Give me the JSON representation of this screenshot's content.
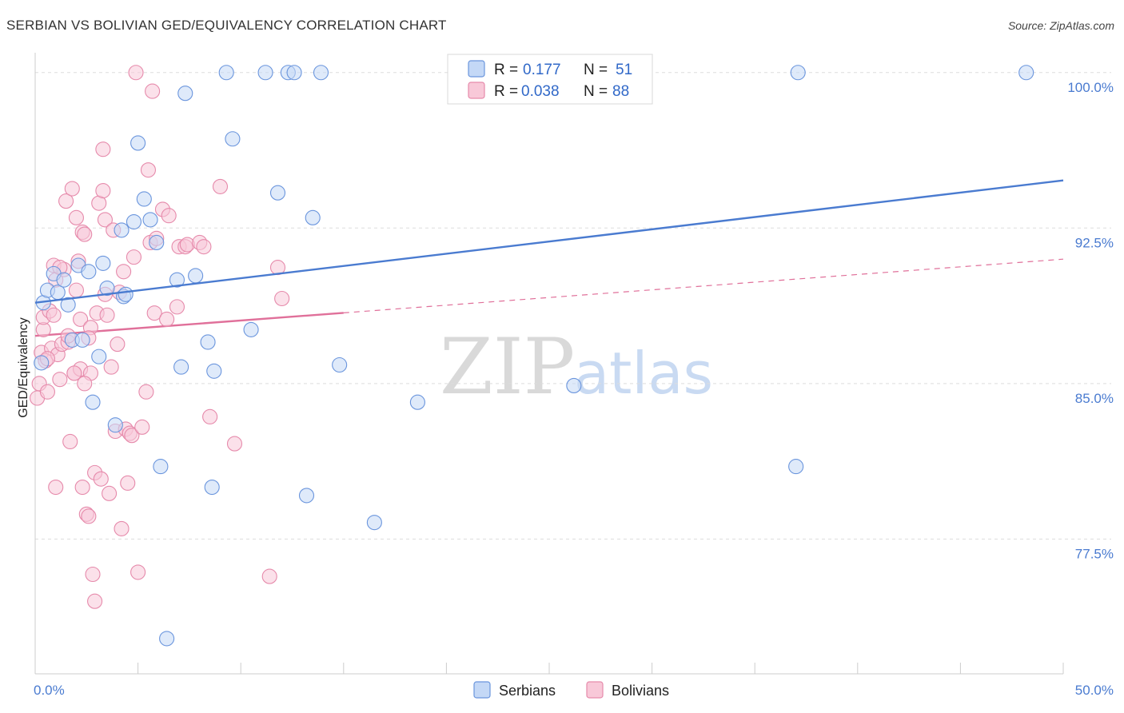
{
  "title": "SERBIAN VS BOLIVIAN GED/EQUIVALENCY CORRELATION CHART",
  "source": "Source: ZipAtlas.com",
  "watermark": {
    "zip": "ZIP",
    "atlas": "atlas"
  },
  "colors": {
    "serbians": "#4a7bd0",
    "bolivians": "#e0709a"
  },
  "legend": {
    "r_label": "R =",
    "n_label": "N =",
    "serbians": {
      "r": "0.177",
      "n": "51"
    },
    "bolivians": {
      "r": "0.038",
      "n": "88"
    }
  },
  "chart_data": {
    "type": "scatter",
    "title": "SERBIAN VS BOLIVIAN GED/EQUIVALENCY CORRELATION CHART",
    "xlabel": "",
    "ylabel": "GED/Equivalency",
    "xlim": [
      0,
      50
    ],
    "ylim": [
      71.0,
      100.8
    ],
    "x_tick_labels": [
      {
        "value": 0,
        "label": "0.0%"
      },
      {
        "value": 50,
        "label": "50.0%"
      }
    ],
    "y_ticks": [
      {
        "value": 77.5,
        "label": "77.5%"
      },
      {
        "value": 85.0,
        "label": "85.0%"
      },
      {
        "value": 92.5,
        "label": "92.5%"
      },
      {
        "value": 100.0,
        "label": "100.0%"
      }
    ],
    "legend_position": "bottom",
    "series": [
      {
        "name": "Serbians",
        "color": "#4a7bd0",
        "trend": {
          "x0": 0,
          "y0": 88.9,
          "x1": 50,
          "y1": 94.8,
          "dashed_from": null
        },
        "points": [
          [
            0.3,
            86.0
          ],
          [
            0.4,
            88.9
          ],
          [
            0.6,
            89.5
          ],
          [
            0.9,
            90.3
          ],
          [
            1.1,
            89.4
          ],
          [
            1.4,
            90.0
          ],
          [
            1.6,
            88.8
          ],
          [
            1.8,
            87.1
          ],
          [
            2.1,
            90.7
          ],
          [
            2.3,
            87.1
          ],
          [
            2.6,
            90.4
          ],
          [
            2.8,
            84.1
          ],
          [
            3.1,
            86.3
          ],
          [
            3.3,
            90.8
          ],
          [
            3.5,
            89.6
          ],
          [
            3.9,
            83.0
          ],
          [
            4.2,
            92.4
          ],
          [
            4.3,
            89.2
          ],
          [
            4.4,
            89.3
          ],
          [
            4.8,
            92.8
          ],
          [
            5.0,
            96.6
          ],
          [
            5.3,
            93.9
          ],
          [
            5.6,
            92.9
          ],
          [
            5.9,
            91.8
          ],
          [
            6.1,
            81.0
          ],
          [
            6.4,
            72.7
          ],
          [
            6.9,
            90.0
          ],
          [
            7.1,
            85.8
          ],
          [
            7.3,
            99.0
          ],
          [
            7.8,
            90.2
          ],
          [
            8.4,
            87.0
          ],
          [
            8.6,
            80.0
          ],
          [
            8.7,
            85.6
          ],
          [
            9.3,
            100.0
          ],
          [
            9.6,
            96.8
          ],
          [
            10.5,
            87.6
          ],
          [
            11.2,
            100.0
          ],
          [
            11.8,
            94.2
          ],
          [
            12.3,
            100.0
          ],
          [
            12.6,
            100.0
          ],
          [
            13.2,
            79.6
          ],
          [
            13.5,
            93.0
          ],
          [
            13.9,
            100.0
          ],
          [
            14.8,
            85.9
          ],
          [
            16.5,
            78.3
          ],
          [
            18.6,
            84.1
          ],
          [
            20.6,
            100.0
          ],
          [
            26.2,
            84.9
          ],
          [
            37.0,
            81.0
          ],
          [
            37.1,
            100.0
          ],
          [
            48.2,
            100.0
          ]
        ]
      },
      {
        "name": "Bolivians",
        "color": "#e0709a",
        "trend": {
          "x0": 0,
          "y0": 87.3,
          "x1": 50,
          "y1": 91.0,
          "dashed_from": 15.0
        },
        "points": [
          [
            0.1,
            84.3
          ],
          [
            0.2,
            85.0
          ],
          [
            0.3,
            86.5
          ],
          [
            0.4,
            87.6
          ],
          [
            0.4,
            88.2
          ],
          [
            0.5,
            86.1
          ],
          [
            0.6,
            84.6
          ],
          [
            0.7,
            88.5
          ],
          [
            0.8,
            86.7
          ],
          [
            0.9,
            90.7
          ],
          [
            1.0,
            90.0
          ],
          [
            1.1,
            86.4
          ],
          [
            1.2,
            85.2
          ],
          [
            1.3,
            86.9
          ],
          [
            1.4,
            90.5
          ],
          [
            1.5,
            93.8
          ],
          [
            1.6,
            87.0
          ],
          [
            1.7,
            82.2
          ],
          [
            1.8,
            94.4
          ],
          [
            1.9,
            85.5
          ],
          [
            2.0,
            93.0
          ],
          [
            2.1,
            90.9
          ],
          [
            2.2,
            85.7
          ],
          [
            2.2,
            88.1
          ],
          [
            2.3,
            92.3
          ],
          [
            2.3,
            80.0
          ],
          [
            2.4,
            92.2
          ],
          [
            2.5,
            78.7
          ],
          [
            2.6,
            78.6
          ],
          [
            2.7,
            85.5
          ],
          [
            2.7,
            87.7
          ],
          [
            2.8,
            75.8
          ],
          [
            2.9,
            80.7
          ],
          [
            2.9,
            74.5
          ],
          [
            3.0,
            88.4
          ],
          [
            3.1,
            93.7
          ],
          [
            3.2,
            80.4
          ],
          [
            3.3,
            94.3
          ],
          [
            3.3,
            96.3
          ],
          [
            3.4,
            92.9
          ],
          [
            3.5,
            88.3
          ],
          [
            3.6,
            79.7
          ],
          [
            3.7,
            85.8
          ],
          [
            3.8,
            92.4
          ],
          [
            3.9,
            82.7
          ],
          [
            4.0,
            86.9
          ],
          [
            4.1,
            89.4
          ],
          [
            4.2,
            78.0
          ],
          [
            4.3,
            90.4
          ],
          [
            4.4,
            82.8
          ],
          [
            4.5,
            80.2
          ],
          [
            4.6,
            82.6
          ],
          [
            4.7,
            82.5
          ],
          [
            4.8,
            91.1
          ],
          [
            4.9,
            100.0
          ],
          [
            5.0,
            75.9
          ],
          [
            5.2,
            82.9
          ],
          [
            5.4,
            84.6
          ],
          [
            5.5,
            95.3
          ],
          [
            5.6,
            91.8
          ],
          [
            5.7,
            99.1
          ],
          [
            5.8,
            88.4
          ],
          [
            5.9,
            92.0
          ],
          [
            6.2,
            93.4
          ],
          [
            6.4,
            88.1
          ],
          [
            6.5,
            93.1
          ],
          [
            6.9,
            88.7
          ],
          [
            7.0,
            91.6
          ],
          [
            7.3,
            91.6
          ],
          [
            7.4,
            91.7
          ],
          [
            8.0,
            91.8
          ],
          [
            8.2,
            91.6
          ],
          [
            8.5,
            83.4
          ],
          [
            9.0,
            94.5
          ],
          [
            9.7,
            82.1
          ],
          [
            11.4,
            75.7
          ],
          [
            11.8,
            90.6
          ],
          [
            12.0,
            89.1
          ],
          [
            1.6,
            87.3
          ],
          [
            2.6,
            87.2
          ],
          [
            1.2,
            90.6
          ],
          [
            0.6,
            86.2
          ],
          [
            2.0,
            89.5
          ],
          [
            3.4,
            89.3
          ],
          [
            0.9,
            88.3
          ],
          [
            1.9,
            85.5
          ],
          [
            2.4,
            85.0
          ],
          [
            1.0,
            80.0
          ]
        ]
      }
    ]
  }
}
